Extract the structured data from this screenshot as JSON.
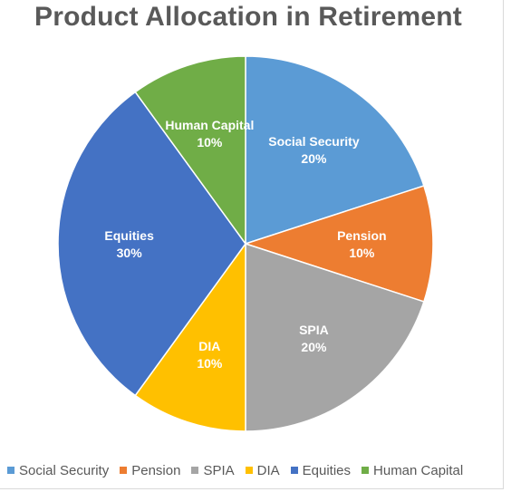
{
  "chart_data": {
    "type": "pie",
    "title": "Product Allocation in Retirement",
    "categories": [
      "Social Security",
      "Pension",
      "SPIA",
      "DIA",
      "Equities",
      "Human Capital"
    ],
    "values": [
      20,
      10,
      20,
      10,
      30,
      10
    ],
    "data_labels": [
      "20%",
      "10%",
      "20%",
      "10%",
      "30%",
      "10%"
    ],
    "colors": [
      "#5B9BD5",
      "#ED7D31",
      "#A5A5A5",
      "#FFC000",
      "#4472C4",
      "#70AD47"
    ],
    "start_angle_deg": 0,
    "direction": "clockwise",
    "legend_position": "bottom"
  }
}
